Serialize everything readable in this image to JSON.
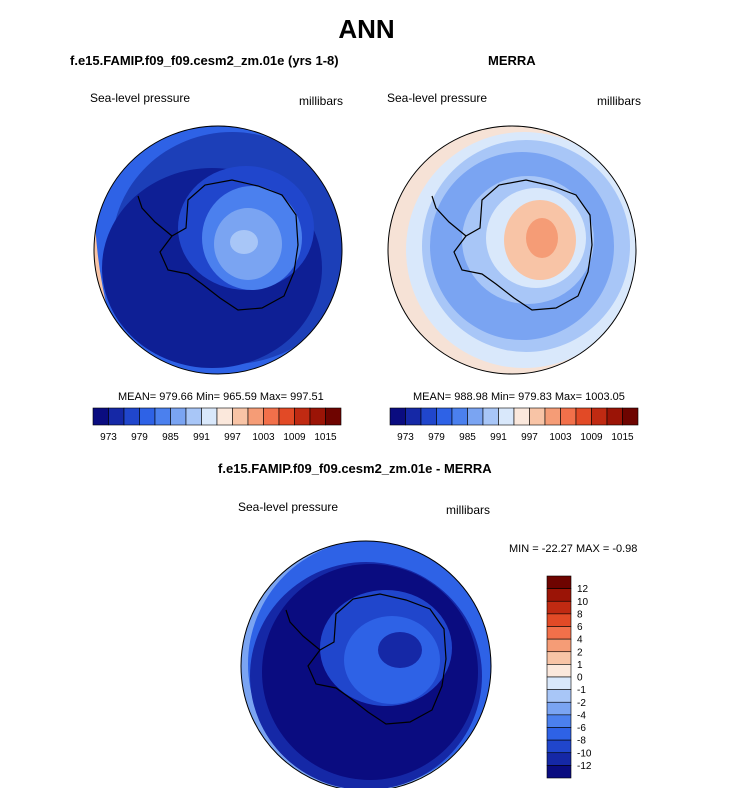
{
  "figure": {
    "title": "ANN"
  },
  "panels": [
    {
      "title": "f.e15.FAMIP.f09_f09.cesm2_zm.01e (yrs 1-8)",
      "variable": "Sea-level pressure",
      "units": "millibars",
      "stats": "MEAN= 979.66  Min= 965.59  Max= 997.51",
      "colorbar": {
        "colors": [
          "#0a0c80",
          "#1528a6",
          "#2046cc",
          "#2e62e6",
          "#4b80ee",
          "#7aa4f2",
          "#a8c6f7",
          "#d9e8fb",
          "#fbe8dc",
          "#f8c4a6",
          "#f59c76",
          "#f2704a",
          "#e24a26",
          "#c02a12",
          "#9b1406",
          "#6e0400"
        ],
        "ticks": [
          "973",
          "979",
          "985",
          "991",
          "997",
          "1003",
          "1009",
          "1015"
        ]
      }
    },
    {
      "title": "MERRA",
      "variable": "Sea-level pressure",
      "units": "millibars",
      "stats": "MEAN= 988.98  Min= 979.83  Max= 1003.05",
      "colorbar": {
        "colors": [
          "#0a0c80",
          "#1528a6",
          "#2046cc",
          "#2e62e6",
          "#4b80ee",
          "#7aa4f2",
          "#a8c6f7",
          "#d9e8fb",
          "#fbe8dc",
          "#f8c4a6",
          "#f59c76",
          "#f2704a",
          "#e24a26",
          "#c02a12",
          "#9b1406",
          "#6e0400"
        ],
        "ticks": [
          "973",
          "979",
          "985",
          "991",
          "997",
          "1003",
          "1009",
          "1015"
        ]
      }
    },
    {
      "title": "f.e15.FAMIP.f09_f09.cesm2_zm.01e - MERRA",
      "variable": "Sea-level pressure",
      "units": "millibars",
      "stats": "MIN = -22.27 MAX =  -0.98",
      "colorbar": {
        "colors": [
          "#0a0c80",
          "#1528a6",
          "#2046cc",
          "#2e62e6",
          "#4b80ee",
          "#7aa4f2",
          "#a8c6f7",
          "#d9e8fb",
          "#fbe8dc",
          "#f8c4a6",
          "#f59c76",
          "#f2704a",
          "#e24a26",
          "#c02a12",
          "#9b1406",
          "#6e0400"
        ],
        "ticks": [
          "-12",
          "-10",
          "-8",
          "-6",
          "-4",
          "-2",
          "-1",
          "0",
          "1",
          "2",
          "4",
          "6",
          "8",
          "10",
          "12"
        ]
      }
    }
  ]
}
